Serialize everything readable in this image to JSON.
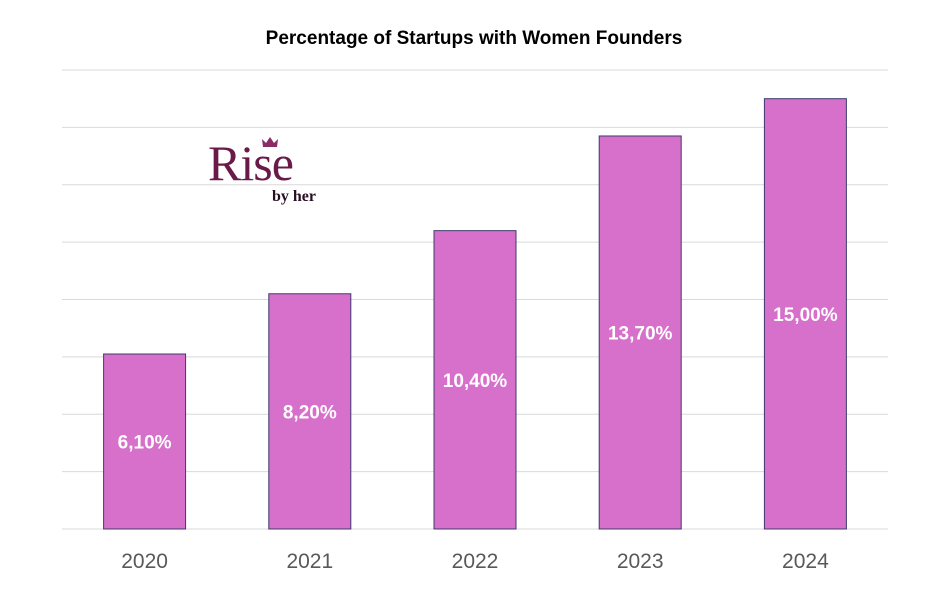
{
  "chart_data": {
    "type": "bar",
    "title": "Percentage of Startups with Women Founders",
    "categories": [
      "2020",
      "2021",
      "2022",
      "2023",
      "2024"
    ],
    "values": [
      6.1,
      8.2,
      10.4,
      13.7,
      15.0
    ],
    "data_labels": [
      "6,10%",
      "8,20%",
      "10,40%",
      "13,70%",
      "15,00%"
    ],
    "xlabel": "",
    "ylabel": "",
    "ylim": [
      0,
      16
    ],
    "gridline_step": 2,
    "grid": true,
    "y_tick_labels_shown": false,
    "colors": {
      "bar": "#d670ca",
      "bar_edge": "#3d3a6e",
      "grid": "#d9d9d9",
      "label": "#ffffff",
      "tick": "#595959"
    }
  },
  "logo": {
    "main": "Rise",
    "sub": "by her"
  }
}
